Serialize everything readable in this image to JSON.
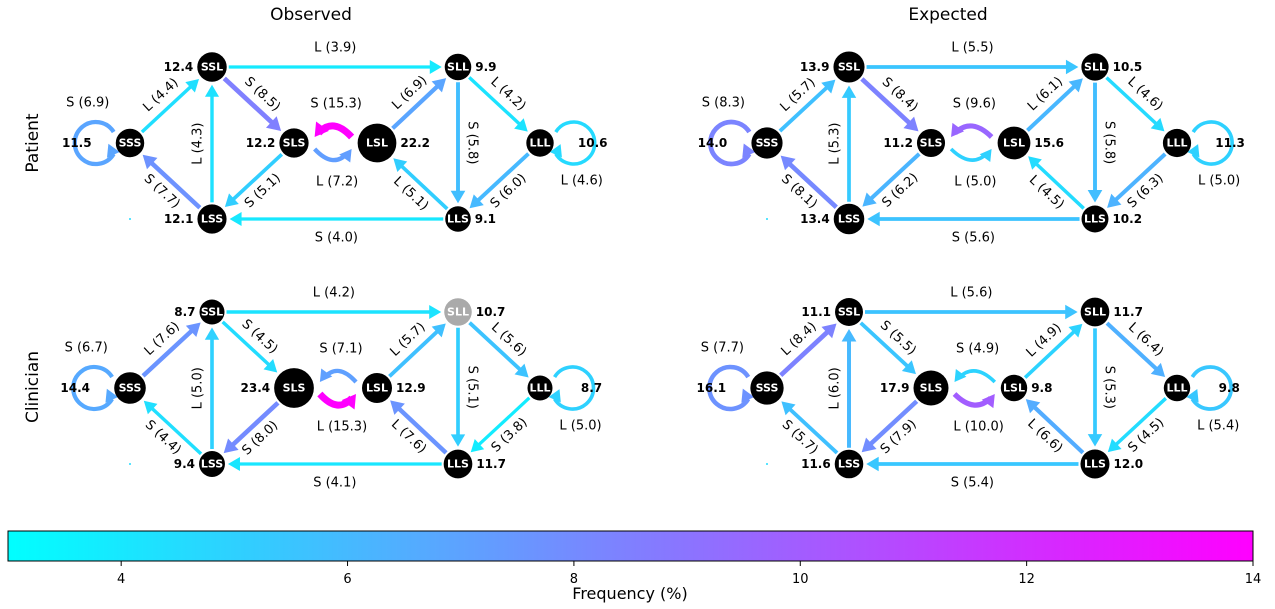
{
  "colors": {
    "colormap_low": "#00ffff",
    "colormap_high": "#ff00ff",
    "node_fill": "#000000",
    "node_fill_highlight": "#aaaaaa",
    "node_text": "#ffffff"
  },
  "columns": [
    "Observed",
    "Expected"
  ],
  "rows": [
    "Patient",
    "Clinician"
  ],
  "colorbar": {
    "label": "Frequency (%)",
    "min": 3,
    "max": 14,
    "ticks": [
      "4",
      "6",
      "8",
      "10",
      "12",
      "14"
    ]
  },
  "panels": [
    {
      "id": "patient-observed",
      "nodes": {
        "SSS": {
          "label": "SSS",
          "value": "11.5",
          "size": 11.5
        },
        "SSL": {
          "label": "SSL",
          "value": "12.4",
          "size": 12.4
        },
        "SLS": {
          "label": "SLS",
          "value": "12.2",
          "size": 12.2
        },
        "LSL": {
          "label": "LSL",
          "value": "22.2",
          "size": 22.2
        },
        "LSS": {
          "label": "LSS",
          "value": "12.1",
          "size": 12.1
        },
        "SLL": {
          "label": "SLL",
          "value": "9.9",
          "size": 9.9
        },
        "LLS": {
          "label": "LLS",
          "value": "9.1",
          "size": 9.1
        },
        "LLL": {
          "label": "LLL",
          "value": "10.6",
          "size": 10.6
        }
      },
      "edges": [
        {
          "from": "SSS",
          "to": "SSL",
          "label": "L (4.4)",
          "freq": 4.4
        },
        {
          "from": "LSS",
          "to": "SSS",
          "label": "S (7.7)",
          "freq": 7.7
        },
        {
          "from": "LSS",
          "to": "SSL",
          "label": "L (4.3)",
          "freq": 4.3
        },
        {
          "from": "SSL",
          "to": "SLS",
          "label": "S (8.5)",
          "freq": 8.5
        },
        {
          "from": "SSL",
          "to": "SLL",
          "label": "L (3.9)",
          "freq": 3.9
        },
        {
          "from": "SLS",
          "to": "LSS",
          "label": "S (5.1)",
          "freq": 5.1
        },
        {
          "from": "LSL",
          "to": "SLL",
          "label": "L (6.9)",
          "freq": 6.9
        },
        {
          "from": "SLL",
          "to": "LLS",
          "label": "S (5.8)",
          "freq": 5.8
        },
        {
          "from": "SLL",
          "to": "LLL",
          "label": "L (4.2)",
          "freq": 4.2
        },
        {
          "from": "LLL",
          "to": "LLS",
          "label": "S (6.0)",
          "freq": 6.0
        },
        {
          "from": "LLS",
          "to": "LSL",
          "label": "L (5.1)",
          "freq": 5.1
        },
        {
          "from": "LLS",
          "to": "LSS",
          "label": "S (4.0)",
          "freq": 4.0
        }
      ],
      "self_loops": [
        {
          "node": "SSS",
          "label": "S (6.9)",
          "freq": 6.9
        },
        {
          "node": "LLL",
          "label": "L (4.6)",
          "freq": 4.6
        }
      ],
      "pair": {
        "top_label": "S (15.3)",
        "top_freq": 15.3,
        "bottom_label": "L (7.2)",
        "bottom_freq": 7.2
      }
    },
    {
      "id": "patient-expected",
      "nodes": {
        "SSS": {
          "label": "SSS",
          "value": "14.0",
          "size": 14.0
        },
        "SSL": {
          "label": "SSL",
          "value": "13.9",
          "size": 13.9
        },
        "SLS": {
          "label": "SLS",
          "value": "11.2",
          "size": 11.2
        },
        "LSL": {
          "label": "LSL",
          "value": "15.6",
          "size": 15.6
        },
        "LSS": {
          "label": "LSS",
          "value": "13.4",
          "size": 13.4
        },
        "SLL": {
          "label": "SLL",
          "value": "10.5",
          "size": 10.5
        },
        "LLS": {
          "label": "LLS",
          "value": "10.2",
          "size": 10.2
        },
        "LLL": {
          "label": "LLL",
          "value": "11.3",
          "size": 11.3
        }
      },
      "edges": [
        {
          "from": "SSS",
          "to": "SSL",
          "label": "L (5.7)",
          "freq": 5.7
        },
        {
          "from": "LSS",
          "to": "SSS",
          "label": "S (8.1)",
          "freq": 8.1
        },
        {
          "from": "LSS",
          "to": "SSL",
          "label": "L (5.3)",
          "freq": 5.3
        },
        {
          "from": "SSL",
          "to": "SLS",
          "label": "S (8.4)",
          "freq": 8.4
        },
        {
          "from": "SSL",
          "to": "SLL",
          "label": "L (5.5)",
          "freq": 5.5
        },
        {
          "from": "SLS",
          "to": "LSS",
          "label": "S (6.2)",
          "freq": 6.2
        },
        {
          "from": "LSL",
          "to": "SLL",
          "label": "L (6.1)",
          "freq": 6.1
        },
        {
          "from": "SLL",
          "to": "LLS",
          "label": "S (5.8)",
          "freq": 5.8
        },
        {
          "from": "SLL",
          "to": "LLL",
          "label": "L (4.6)",
          "freq": 4.6
        },
        {
          "from": "LLL",
          "to": "LLS",
          "label": "S (6.3)",
          "freq": 6.3
        },
        {
          "from": "LLS",
          "to": "LSL",
          "label": "L (4.5)",
          "freq": 4.5
        },
        {
          "from": "LLS",
          "to": "LSS",
          "label": "S (5.6)",
          "freq": 5.6
        }
      ],
      "self_loops": [
        {
          "node": "SSS",
          "label": "S (8.3)",
          "freq": 8.3
        },
        {
          "node": "LLL",
          "label": "L (5.0)",
          "freq": 5.0
        }
      ],
      "pair": {
        "top_label": "S (9.6)",
        "top_freq": 9.6,
        "bottom_label": "L (5.0)",
        "bottom_freq": 5.0
      }
    },
    {
      "id": "clinician-observed",
      "nodes": {
        "SSS": {
          "label": "SSS",
          "value": "14.4",
          "size": 14.4
        },
        "SSL": {
          "label": "SSL",
          "value": "8.7",
          "size": 8.7
        },
        "SLS": {
          "label": "SLS",
          "value": "23.4",
          "size": 23.4
        },
        "LSL": {
          "label": "LSL",
          "value": "12.9",
          "size": 12.9
        },
        "LSS": {
          "label": "LSS",
          "value": "9.4",
          "size": 9.4
        },
        "SLL": {
          "label": "SLL",
          "value": "10.7",
          "size": 10.7,
          "highlight": true
        },
        "LLS": {
          "label": "LLS",
          "value": "11.7",
          "size": 11.7
        },
        "LLL": {
          "label": "LLL",
          "value": "8.7",
          "size": 8.7
        }
      },
      "edges": [
        {
          "from": "SSS",
          "to": "SSL",
          "label": "L (7.6)",
          "freq": 7.6
        },
        {
          "from": "LSS",
          "to": "SSS",
          "label": "S (4.4)",
          "freq": 4.4
        },
        {
          "from": "LSS",
          "to": "SSL",
          "label": "L (5.0)",
          "freq": 5.0
        },
        {
          "from": "SSL",
          "to": "SLS",
          "label": "S (4.5)",
          "freq": 4.5
        },
        {
          "from": "SSL",
          "to": "SLL",
          "label": "L (4.2)",
          "freq": 4.2
        },
        {
          "from": "SLS",
          "to": "LSS",
          "label": "S (8.0)",
          "freq": 8.0
        },
        {
          "from": "LSL",
          "to": "SLL",
          "label": "L (5.7)",
          "freq": 5.7
        },
        {
          "from": "SLL",
          "to": "LLS",
          "label": "S (5.1)",
          "freq": 5.1
        },
        {
          "from": "SLL",
          "to": "LLL",
          "label": "L (5.6)",
          "freq": 5.6
        },
        {
          "from": "LLL",
          "to": "LLS",
          "label": "S (3.8)",
          "freq": 3.8
        },
        {
          "from": "LLS",
          "to": "LSL",
          "label": "L (7.6)",
          "freq": 7.6
        },
        {
          "from": "LLS",
          "to": "LSS",
          "label": "S (4.1)",
          "freq": 4.1
        }
      ],
      "self_loops": [
        {
          "node": "SSS",
          "label": "S (6.7)",
          "freq": 6.7
        },
        {
          "node": "LLL",
          "label": "L (5.0)",
          "freq": 5.0
        }
      ],
      "pair": {
        "top_label": "S (7.1)",
        "top_freq": 7.1,
        "bottom_label": "L (15.3)",
        "bottom_freq": 15.3
      }
    },
    {
      "id": "clinician-expected",
      "nodes": {
        "SSS": {
          "label": "SSS",
          "value": "16.1",
          "size": 16.1
        },
        "SSL": {
          "label": "SSL",
          "value": "11.1",
          "size": 11.1
        },
        "SLS": {
          "label": "SLS",
          "value": "17.9",
          "size": 17.9
        },
        "LSL": {
          "label": "LSL",
          "value": "9.8",
          "size": 9.8
        },
        "LSS": {
          "label": "LSS",
          "value": "11.6",
          "size": 11.6
        },
        "SLL": {
          "label": "SLL",
          "value": "11.7",
          "size": 11.7
        },
        "LLS": {
          "label": "LLS",
          "value": "12.0",
          "size": 12.0
        },
        "LLL": {
          "label": "LLL",
          "value": "9.8",
          "size": 9.8
        }
      },
      "edges": [
        {
          "from": "SSS",
          "to": "SSL",
          "label": "L (8.4)",
          "freq": 8.4
        },
        {
          "from": "LSS",
          "to": "SSS",
          "label": "S (5.7)",
          "freq": 5.7
        },
        {
          "from": "LSS",
          "to": "SSL",
          "label": "L (6.0)",
          "freq": 6.0
        },
        {
          "from": "SSL",
          "to": "SLS",
          "label": "S (5.5)",
          "freq": 5.5
        },
        {
          "from": "SSL",
          "to": "SLL",
          "label": "L (5.6)",
          "freq": 5.6
        },
        {
          "from": "SLS",
          "to": "LSS",
          "label": "S (7.9)",
          "freq": 7.9
        },
        {
          "from": "LSL",
          "to": "SLL",
          "label": "L (4.9)",
          "freq": 4.9
        },
        {
          "from": "SLL",
          "to": "LLS",
          "label": "S (5.3)",
          "freq": 5.3
        },
        {
          "from": "SLL",
          "to": "LLL",
          "label": "L (6.4)",
          "freq": 6.4
        },
        {
          "from": "LLL",
          "to": "LLS",
          "label": "S (4.5)",
          "freq": 4.5
        },
        {
          "from": "LLS",
          "to": "LSL",
          "label": "L (6.6)",
          "freq": 6.6
        },
        {
          "from": "LLS",
          "to": "LSS",
          "label": "S (5.4)",
          "freq": 5.4
        }
      ],
      "self_loops": [
        {
          "node": "SSS",
          "label": "S (7.7)",
          "freq": 7.7
        },
        {
          "node": "LLL",
          "label": "L (5.4)",
          "freq": 5.4
        }
      ],
      "pair": {
        "top_label": "S (4.9)",
        "top_freq": 4.9,
        "bottom_label": "L (10.0)",
        "bottom_freq": 10.0
      }
    }
  ]
}
